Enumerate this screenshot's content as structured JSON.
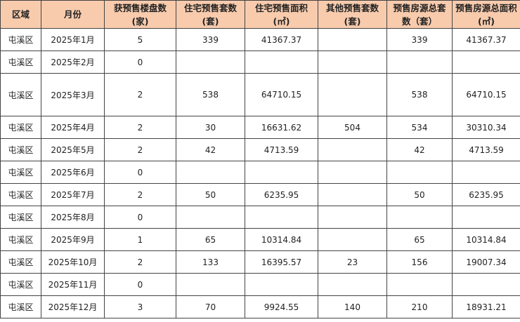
{
  "header_color": "#f8cbad",
  "columns": [
    "区域",
    "月份",
    "获预售楼盘数(家)",
    "住宅预售套数(套)",
    "住宅预售面积(㎡)",
    "其他预售套数(套)",
    "预售房源总套数（套）",
    "预售房源总面积(㎡)"
  ],
  "header_lines": [
    [
      "区域"
    ],
    [
      "月份"
    ],
    [
      "获预售楼盘数",
      "(家)"
    ],
    [
      "住宅预售套数",
      "(套)"
    ],
    [
      "住宅预售面积",
      "(㎡)"
    ],
    [
      "其他预售套数",
      "(套)"
    ],
    [
      "预售房源总套",
      "数（套）"
    ],
    [
      "预售房源总面积",
      "(㎡)"
    ]
  ],
  "rows": [
    [
      "屯溪区",
      "2025年1月",
      "5",
      "339",
      "41367.37",
      "",
      "339",
      "41367.37"
    ],
    [
      "屯溪区",
      "2025年2月",
      "0",
      "",
      "",
      "",
      "",
      ""
    ],
    [
      "屯溪区",
      "2025年3月",
      "2",
      "538",
      "64710.15",
      "",
      "538",
      "64710.15"
    ],
    [
      "屯溪区",
      "2025年4月",
      "2",
      "30",
      "16631.62",
      "504",
      "534",
      "30310.34"
    ],
    [
      "屯溪区",
      "2025年5月",
      "2",
      "42",
      "4713.59",
      "",
      "42",
      "4713.59"
    ],
    [
      "屯溪区",
      "2025年6月",
      "0",
      "",
      "",
      "",
      "",
      ""
    ],
    [
      "屯溪区",
      "2025年7月",
      "2",
      "50",
      "6235.95",
      "",
      "50",
      "6235.95"
    ],
    [
      "屯溪区",
      "2025年8月",
      "0",
      "",
      "",
      "",
      "",
      ""
    ],
    [
      "屯溪区",
      "2025年9月",
      "1",
      "65",
      "10314.84",
      "",
      "65",
      "10314.84"
    ],
    [
      "屯溪区",
      "2025年10月",
      "2",
      "133",
      "16395.57",
      "23",
      "156",
      "19007.34"
    ],
    [
      "屯溪区",
      "2025年11月",
      "0",
      "",
      "",
      "",
      "",
      ""
    ],
    [
      "屯溪区",
      "2025年12月",
      "3",
      "70",
      "9924.55",
      "140",
      "210",
      "18931.21"
    ]
  ]
}
